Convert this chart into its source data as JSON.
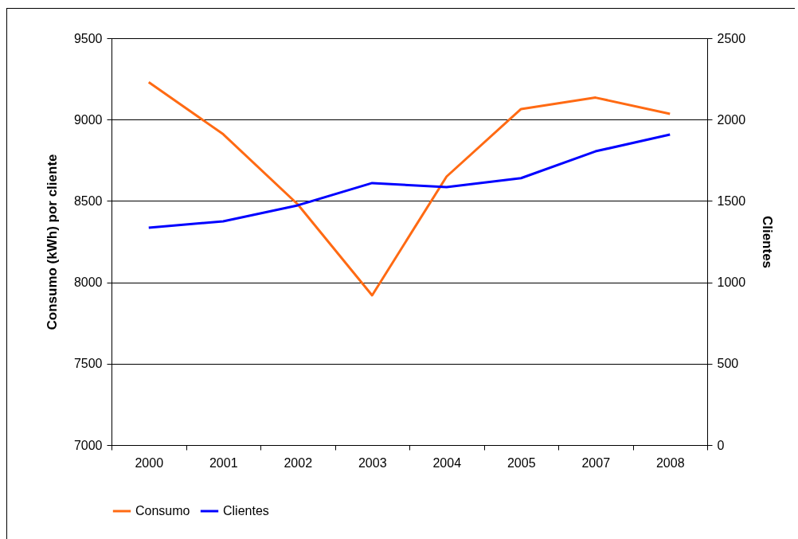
{
  "chart_data": {
    "type": "line",
    "categories": [
      "2000",
      "2001",
      "2002",
      "2003",
      "2004",
      "2005",
      "2007",
      "2008"
    ],
    "ylabel": "Consumo (kWh) por cliente",
    "y2label": "Clientes",
    "ylim": [
      7000,
      9500
    ],
    "yticks": [
      7000,
      7500,
      8000,
      8500,
      9000,
      9500
    ],
    "y2lim": [
      0,
      2500
    ],
    "y2ticks": [
      0,
      500,
      1000,
      1500,
      2000,
      2500
    ],
    "grid": "y",
    "legend": "bottom",
    "marker": "none",
    "line_style": "solid",
    "series": [
      {
        "name": "Consumo",
        "color": "#ff6a13",
        "values": [
          9230,
          8910,
          8480,
          7920,
          8650,
          9065,
          9135,
          9035
        ]
      },
      {
        "name": "Clientes",
        "color": "#0000ff",
        "axis": "y2",
        "values": [
          1336,
          1375,
          1473,
          1610,
          1585,
          1640,
          1805,
          1908
        ]
      }
    ]
  }
}
